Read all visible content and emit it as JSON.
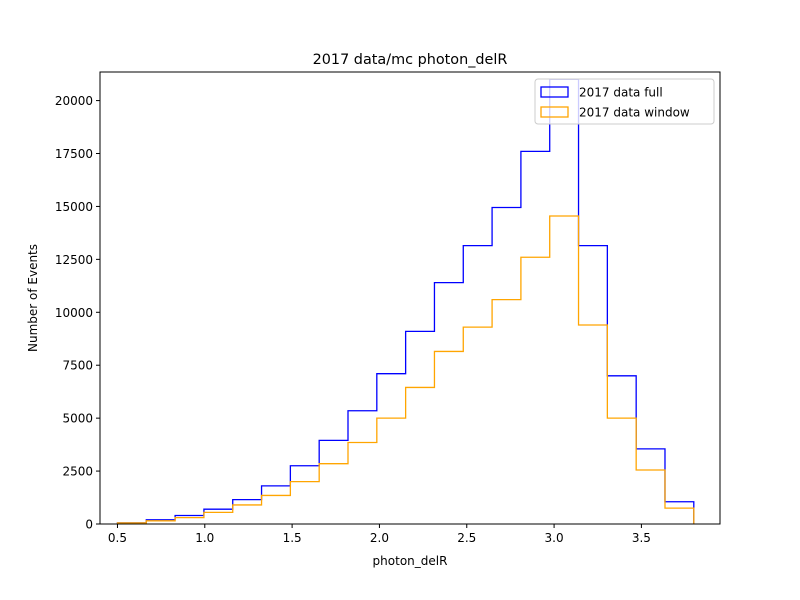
{
  "chart_data": {
    "type": "histogram-step",
    "title": "2017 data/mc photon_delR",
    "xlabel": "photon_delR",
    "ylabel": "Number of Events",
    "xlim": [
      0.4,
      3.95
    ],
    "ylim": [
      0,
      21350
    ],
    "xticks": [
      0.5,
      1.0,
      1.5,
      2.0,
      2.5,
      3.0,
      3.5
    ],
    "xtick_labels": [
      "0.5",
      "1.0",
      "1.5",
      "2.0",
      "2.5",
      "3.0",
      "3.5"
    ],
    "yticks": [
      0,
      2500,
      5000,
      7500,
      10000,
      12500,
      15000,
      17500,
      20000
    ],
    "ytick_labels": [
      "0",
      "2500",
      "5000",
      "7500",
      "10000",
      "12500",
      "15000",
      "17500",
      "20000"
    ],
    "bin_edges": [
      0.5,
      0.665,
      0.83,
      0.995,
      1.16,
      1.325,
      1.49,
      1.655,
      1.82,
      1.985,
      2.15,
      2.315,
      2.48,
      2.645,
      2.81,
      2.975,
      3.14,
      3.305,
      3.47,
      3.635,
      3.8
    ],
    "legend_position": "upper-right",
    "series": [
      {
        "name": "2017 data full",
        "color": "#0000ff",
        "values": [
          50,
          200,
          400,
          700,
          1150,
          1800,
          2750,
          3950,
          5350,
          7100,
          9100,
          11400,
          13150,
          14950,
          17600,
          21000,
          13150,
          7000,
          3550,
          1050
        ]
      },
      {
        "name": "2017 data window",
        "color": "#ffa500",
        "values": [
          50,
          150,
          300,
          550,
          900,
          1350,
          2000,
          2850,
          3850,
          5000,
          6450,
          8150,
          9300,
          10600,
          12600,
          14550,
          9400,
          5000,
          2550,
          750
        ]
      }
    ]
  }
}
